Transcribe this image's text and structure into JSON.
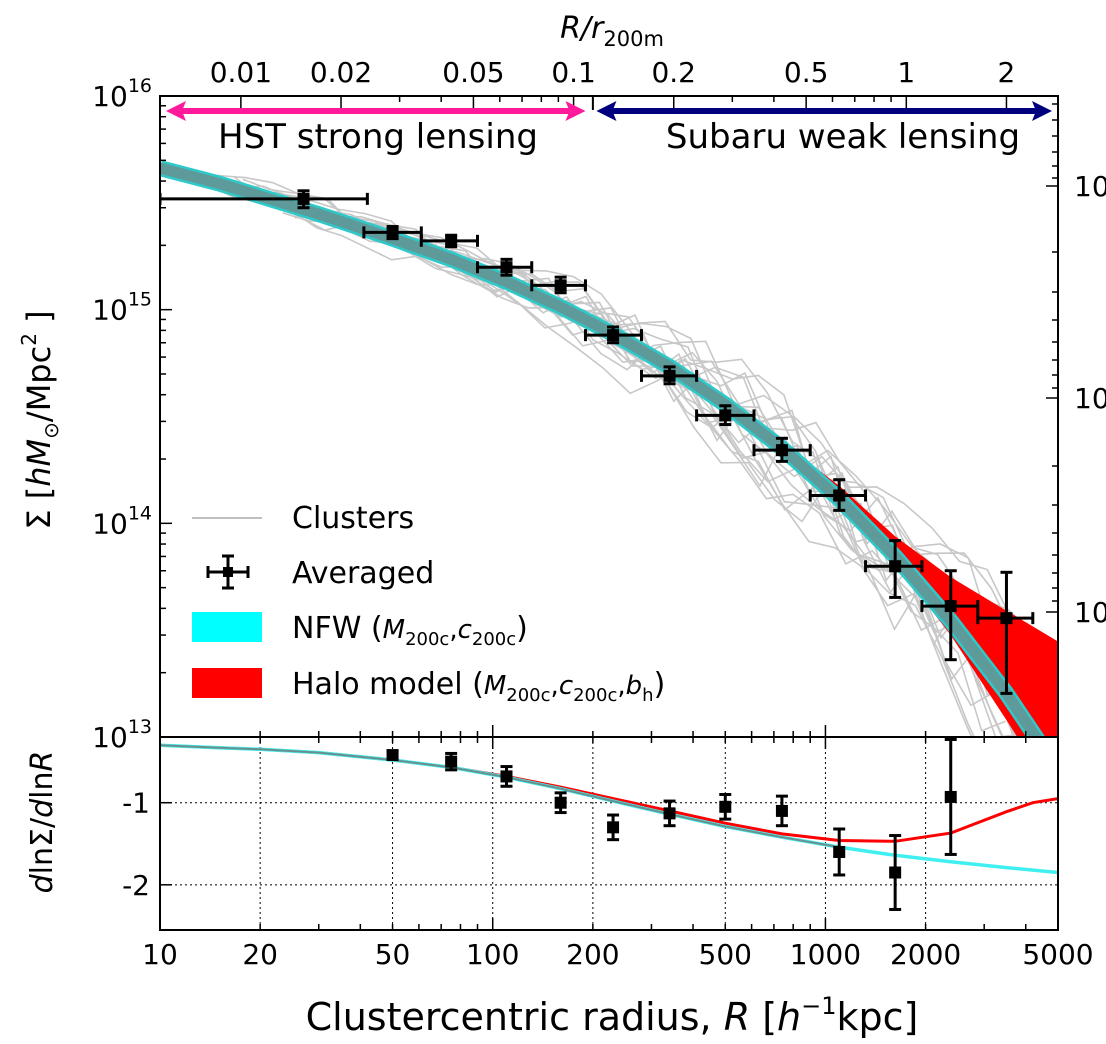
{
  "chart_data": [
    {
      "type": "line",
      "panel": "top",
      "xscale": "log",
      "yscale": "log",
      "xlim": [
        10,
        5000
      ],
      "ylim": [
        10000000000000.0,
        1e+16
      ],
      "top_axis": {
        "label_main": "R/r",
        "label_sub": "200m",
        "ticks": [
          0.01,
          0.02,
          0.05,
          0.1,
          0.2,
          0.5,
          1,
          2
        ],
        "tick_labels": [
          "0.01",
          "0.02",
          "0.05",
          "0.1",
          "0.2",
          "0.5",
          "1",
          "2"
        ]
      },
      "y_tick_labels": [
        {
          "value": 1e+16,
          "base": "10",
          "exp": "16"
        },
        {
          "value": 1000000000000000.0,
          "base": "10",
          "exp": "15"
        },
        {
          "value": 100000000000000.0,
          "base": "10",
          "exp": "14"
        },
        {
          "value": 10000000000000.0,
          "base": "10",
          "exp": "13"
        }
      ],
      "right_tick_labels": [
        "10",
        "10",
        "10"
      ],
      "ylabel": {
        "sym": "Σ",
        "bracket_open": "[",
        "h": "h",
        "M": "M",
        "sun": "⊙",
        "unit": "/Mpc",
        "exp": "2",
        "bracket_close": "]"
      },
      "regions": [
        {
          "label": "HST strong lensing",
          "x_range": [
            10,
            190
          ],
          "color": "#ff1a9c"
        },
        {
          "label": "Subaru weak lensing",
          "x_range": [
            205,
            5000
          ],
          "color": "#00007f"
        }
      ],
      "grid": false,
      "legend_position": "lower-left",
      "legend": [
        {
          "label": "Clusters",
          "kind": "line",
          "color": "#c0c0c0"
        },
        {
          "label": "Averaged",
          "kind": "errorbar",
          "color": "#000000"
        },
        {
          "label": "NFW",
          "args": [
            "200c",
            "200c"
          ],
          "kind": "band",
          "color": "#00ffff"
        },
        {
          "label": "Halo model",
          "args": [
            "200c",
            "200c",
            "h"
          ],
          "kind": "band",
          "color": "#ff0000"
        }
      ],
      "averaged": {
        "x": [
          27,
          50,
          75,
          110,
          160,
          230,
          340,
          500,
          740,
          1100,
          1620,
          2380,
          3500
        ],
        "y": [
          3300000000000000.0,
          2300000000000000.0,
          2100000000000000.0,
          1580000000000000.0,
          1300000000000000.0,
          760000000000000.0,
          490000000000000.0,
          320000000000000.0,
          220000000000000.0,
          135000000000000.0,
          63000000000000.0,
          41000000000000.0,
          36000000000000.0
        ],
        "xerr_low": [
          10,
          41,
          61,
          90,
          131,
          190,
          280,
          410,
          610,
          900,
          1320,
          1950,
          2870
        ],
        "xerr_high": [
          42,
          61,
          90,
          131,
          190,
          280,
          410,
          610,
          900,
          1320,
          1950,
          2870,
          4200
        ],
        "yerr_low": [
          3000000000000000.0,
          2150000000000000.0,
          1970000000000000.0,
          1450000000000000.0,
          1200000000000000.0,
          700000000000000.0,
          450000000000000.0,
          290000000000000.0,
          195000000000000.0,
          115000000000000.0,
          45000000000000.0,
          23000000000000.0,
          16000000000000.0
        ],
        "yerr_high": [
          3600000000000000.0,
          2450000000000000.0,
          2230000000000000.0,
          1720000000000000.0,
          1420000000000000.0,
          830000000000000.0,
          540000000000000.0,
          355000000000000.0,
          250000000000000.0,
          160000000000000.0,
          83000000000000.0,
          60000000000000.0,
          59000000000000.0
        ]
      },
      "nfw_model": {
        "x": [
          10,
          15,
          20,
          30,
          50,
          75,
          110,
          160,
          230,
          340,
          500,
          740,
          1100,
          1620,
          2380,
          3500,
          5000
        ],
        "y": [
          4600000000000000.0,
          3900000000000000.0,
          3400000000000000.0,
          2800000000000000.0,
          2150000000000000.0,
          1720000000000000.0,
          1350000000000000.0,
          1030000000000000.0,
          770000000000000.0,
          540000000000000.0,
          360000000000000.0,
          225000000000000.0,
          130000000000000.0,
          70000000000000.0,
          35000000000000.0,
          16000000000000.0,
          7000000000000.0
        ]
      },
      "halo_model_band": {
        "x": [
          500,
          740,
          1100,
          1620,
          2380,
          3500,
          5000
        ],
        "y_low": [
          355000000000000.0,
          220000000000000.0,
          125000000000000.0,
          65000000000000.0,
          30000000000000.0,
          12000000000000.0,
          5000000000000.0
        ],
        "y_high": [
          370000000000000.0,
          240000000000000.0,
          150000000000000.0,
          87000000000000.0,
          56000000000000.0,
          39000000000000.0,
          28000000000000.0
        ]
      }
    },
    {
      "type": "line",
      "panel": "bottom",
      "xscale": "log",
      "xlim": [
        10,
        5000
      ],
      "ylim": [
        -2.55,
        -0.2
      ],
      "xlabel": {
        "text": "Clustercentric radius, ",
        "R": "R",
        "unit_open": "[",
        "h": "h",
        "exp": "−1",
        "unit": "kpc",
        "unit_close": "]"
      },
      "ylabel": {
        "d1": "d",
        "ln1": "lnΣ/",
        "d2": "d",
        "ln2": "ln",
        "R": "R"
      },
      "x_ticks": [
        10,
        20,
        50,
        100,
        200,
        500,
        1000,
        2000,
        5000
      ],
      "x_tick_labels": [
        "10",
        "20",
        "50",
        "100",
        "200",
        "500",
        "1000",
        "2000",
        "5000"
      ],
      "y_ticks": [
        -1,
        -2
      ],
      "y_tick_labels": [
        "-1",
        "-2"
      ],
      "grid": true,
      "averaged": {
        "x": [
          50,
          75,
          110,
          160,
          230,
          340,
          500,
          740,
          1100,
          1620,
          2380
        ],
        "y": [
          -0.42,
          -0.5,
          -0.68,
          -1.0,
          -1.3,
          -1.13,
          -1.05,
          -1.1,
          -1.6,
          -1.85,
          -0.93
        ],
        "yerr": [
          0.05,
          0.1,
          0.12,
          0.12,
          0.15,
          0.15,
          0.15,
          0.18,
          0.28,
          0.45,
          0.7
        ]
      },
      "nfw_model": {
        "x": [
          10,
          15,
          20,
          30,
          50,
          75,
          110,
          160,
          230,
          340,
          500,
          740,
          1100,
          1620,
          2380,
          3500,
          5000
        ],
        "y": [
          -0.3,
          -0.33,
          -0.35,
          -0.39,
          -0.48,
          -0.57,
          -0.69,
          -0.83,
          -0.98,
          -1.14,
          -1.29,
          -1.42,
          -1.54,
          -1.64,
          -1.72,
          -1.79,
          -1.85
        ]
      },
      "halo_model": {
        "x": [
          10,
          15,
          20,
          30,
          50,
          75,
          110,
          160,
          230,
          340,
          500,
          740,
          1100,
          1620,
          2380,
          3500,
          4200,
          5000
        ],
        "y": [
          -0.3,
          -0.33,
          -0.35,
          -0.39,
          -0.48,
          -0.57,
          -0.68,
          -0.81,
          -0.95,
          -1.1,
          -1.25,
          -1.38,
          -1.46,
          -1.47,
          -1.37,
          -1.11,
          -1.0,
          -0.95
        ]
      }
    }
  ]
}
